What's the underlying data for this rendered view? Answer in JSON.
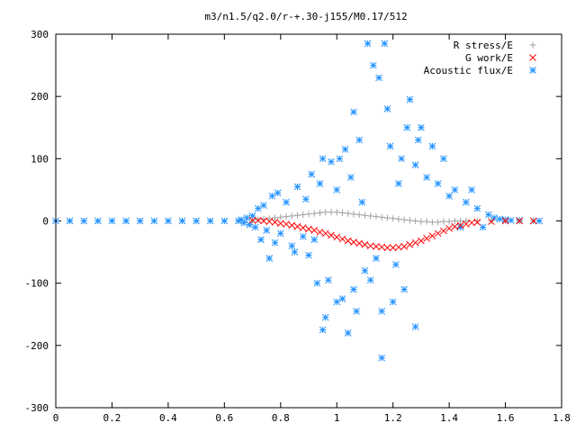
{
  "chart_data": {
    "type": "scatter",
    "title": "m3/n1.5/q2.0/r-+.30-j155/M0.17/512",
    "xlabel": "",
    "ylabel": "",
    "xlim": [
      0,
      1.8
    ],
    "ylim": [
      -300,
      300
    ],
    "xticks": [
      0,
      0.2,
      0.4,
      0.6,
      0.8,
      1,
      1.2,
      1.4,
      1.6,
      1.8
    ],
    "xtick_labels": [
      "0",
      "0.2",
      "0.4",
      "0.6",
      "0.8",
      "1",
      "1.2",
      "1.4",
      "1.6",
      "1.8"
    ],
    "yticks": [
      -300,
      -200,
      -100,
      0,
      100,
      200,
      300
    ],
    "ytick_labels": [
      "-300",
      "-200",
      "-100",
      "0",
      "100",
      "200",
      "300"
    ],
    "grid": false,
    "legend_position": "top-right",
    "series": [
      {
        "name": "R stress/E",
        "marker": "plus",
        "color": "#a0a0a0",
        "points": [
          [
            0.7,
            1
          ],
          [
            0.72,
            2
          ],
          [
            0.74,
            3
          ],
          [
            0.76,
            4
          ],
          [
            0.78,
            5
          ],
          [
            0.8,
            6
          ],
          [
            0.82,
            7
          ],
          [
            0.84,
            8
          ],
          [
            0.86,
            9
          ],
          [
            0.88,
            10
          ],
          [
            0.9,
            11
          ],
          [
            0.92,
            12
          ],
          [
            0.94,
            13
          ],
          [
            0.96,
            14
          ],
          [
            0.98,
            14
          ],
          [
            1.0,
            14
          ],
          [
            1.02,
            13
          ],
          [
            1.04,
            12
          ],
          [
            1.06,
            11
          ],
          [
            1.08,
            10
          ],
          [
            1.1,
            9
          ],
          [
            1.12,
            8
          ],
          [
            1.14,
            7
          ],
          [
            1.16,
            6
          ],
          [
            1.18,
            5
          ],
          [
            1.2,
            4
          ],
          [
            1.22,
            3
          ],
          [
            1.24,
            2
          ],
          [
            1.26,
            1
          ],
          [
            1.28,
            0
          ],
          [
            1.3,
            -1
          ],
          [
            1.32,
            -1
          ],
          [
            1.34,
            -2
          ],
          [
            1.36,
            -2
          ],
          [
            1.38,
            -1
          ],
          [
            1.4,
            -1
          ],
          [
            1.42,
            0
          ],
          [
            1.44,
            0
          ],
          [
            1.46,
            0
          ],
          [
            1.5,
            0
          ],
          [
            1.55,
            0
          ],
          [
            1.6,
            0
          ],
          [
            1.65,
            0
          ],
          [
            1.7,
            0
          ]
        ]
      },
      {
        "name": "G work/E",
        "marker": "cross",
        "color": "#ff0000",
        "points": [
          [
            0.7,
            1
          ],
          [
            0.72,
            1
          ],
          [
            0.74,
            0
          ],
          [
            0.76,
            -1
          ],
          [
            0.78,
            -2
          ],
          [
            0.8,
            -4
          ],
          [
            0.82,
            -5
          ],
          [
            0.84,
            -7
          ],
          [
            0.86,
            -9
          ],
          [
            0.88,
            -11
          ],
          [
            0.9,
            -13
          ],
          [
            0.92,
            -15
          ],
          [
            0.94,
            -18
          ],
          [
            0.96,
            -20
          ],
          [
            0.98,
            -23
          ],
          [
            1.0,
            -26
          ],
          [
            1.02,
            -29
          ],
          [
            1.04,
            -32
          ],
          [
            1.06,
            -34
          ],
          [
            1.08,
            -36
          ],
          [
            1.1,
            -38
          ],
          [
            1.12,
            -40
          ],
          [
            1.14,
            -41
          ],
          [
            1.16,
            -42
          ],
          [
            1.18,
            -43
          ],
          [
            1.2,
            -43
          ],
          [
            1.22,
            -42
          ],
          [
            1.24,
            -41
          ],
          [
            1.26,
            -38
          ],
          [
            1.28,
            -35
          ],
          [
            1.3,
            -32
          ],
          [
            1.32,
            -28
          ],
          [
            1.34,
            -24
          ],
          [
            1.36,
            -20
          ],
          [
            1.38,
            -16
          ],
          [
            1.4,
            -12
          ],
          [
            1.42,
            -9
          ],
          [
            1.44,
            -7
          ],
          [
            1.46,
            -5
          ],
          [
            1.48,
            -3
          ],
          [
            1.5,
            -2
          ],
          [
            1.55,
            -1
          ],
          [
            1.6,
            0
          ],
          [
            1.65,
            0
          ],
          [
            1.7,
            0
          ]
        ]
      },
      {
        "name": "Acoustic flux/E",
        "marker": "star",
        "color": "#1e90ff",
        "points": [
          [
            0,
            0
          ],
          [
            0.05,
            0
          ],
          [
            0.1,
            0
          ],
          [
            0.15,
            0
          ],
          [
            0.2,
            0
          ],
          [
            0.25,
            0
          ],
          [
            0.3,
            0
          ],
          [
            0.35,
            0
          ],
          [
            0.4,
            0
          ],
          [
            0.45,
            0
          ],
          [
            0.5,
            0
          ],
          [
            0.55,
            0
          ],
          [
            0.6,
            0
          ],
          [
            0.65,
            0
          ],
          [
            0.66,
            2
          ],
          [
            0.67,
            -3
          ],
          [
            0.68,
            5
          ],
          [
            0.69,
            -6
          ],
          [
            0.7,
            8
          ],
          [
            0.71,
            -10
          ],
          [
            0.72,
            20
          ],
          [
            0.73,
            -30
          ],
          [
            0.74,
            25
          ],
          [
            0.75,
            -15
          ],
          [
            0.76,
            -60
          ],
          [
            0.77,
            40
          ],
          [
            0.78,
            -35
          ],
          [
            0.79,
            45
          ],
          [
            0.8,
            -20
          ],
          [
            0.82,
            30
          ],
          [
            0.84,
            -40
          ],
          [
            0.85,
            -50
          ],
          [
            0.86,
            55
          ],
          [
            0.88,
            -25
          ],
          [
            0.89,
            35
          ],
          [
            0.9,
            -55
          ],
          [
            0.91,
            75
          ],
          [
            0.92,
            -30
          ],
          [
            0.93,
            -100
          ],
          [
            0.94,
            60
          ],
          [
            0.95,
            100
          ],
          [
            0.95,
            -175
          ],
          [
            0.96,
            -155
          ],
          [
            0.97,
            -95
          ],
          [
            0.98,
            95
          ],
          [
            1.0,
            50
          ],
          [
            1.0,
            -130
          ],
          [
            1.01,
            100
          ],
          [
            1.02,
            -125
          ],
          [
            1.03,
            115
          ],
          [
            1.04,
            -180
          ],
          [
            1.05,
            70
          ],
          [
            1.06,
            175
          ],
          [
            1.06,
            -110
          ],
          [
            1.07,
            -145
          ],
          [
            1.08,
            130
          ],
          [
            1.09,
            30
          ],
          [
            1.1,
            -80
          ],
          [
            1.11,
            285
          ],
          [
            1.12,
            -95
          ],
          [
            1.13,
            250
          ],
          [
            1.14,
            -60
          ],
          [
            1.15,
            230
          ],
          [
            1.16,
            -145
          ],
          [
            1.16,
            -220
          ],
          [
            1.17,
            285
          ],
          [
            1.18,
            180
          ],
          [
            1.19,
            120
          ],
          [
            1.2,
            -130
          ],
          [
            1.21,
            -70
          ],
          [
            1.22,
            60
          ],
          [
            1.23,
            100
          ],
          [
            1.24,
            -110
          ],
          [
            1.25,
            150
          ],
          [
            1.26,
            195
          ],
          [
            1.28,
            -170
          ],
          [
            1.28,
            90
          ],
          [
            1.29,
            130
          ],
          [
            1.3,
            150
          ],
          [
            1.32,
            70
          ],
          [
            1.34,
            120
          ],
          [
            1.36,
            60
          ],
          [
            1.38,
            100
          ],
          [
            1.4,
            40
          ],
          [
            1.42,
            50
          ],
          [
            1.44,
            -10
          ],
          [
            1.46,
            30
          ],
          [
            1.48,
            50
          ],
          [
            1.5,
            20
          ],
          [
            1.52,
            -10
          ],
          [
            1.54,
            10
          ],
          [
            1.56,
            5
          ],
          [
            1.58,
            3
          ],
          [
            1.6,
            2
          ],
          [
            1.62,
            1
          ],
          [
            1.65,
            1
          ],
          [
            1.7,
            0
          ],
          [
            1.72,
            0
          ]
        ]
      }
    ]
  }
}
